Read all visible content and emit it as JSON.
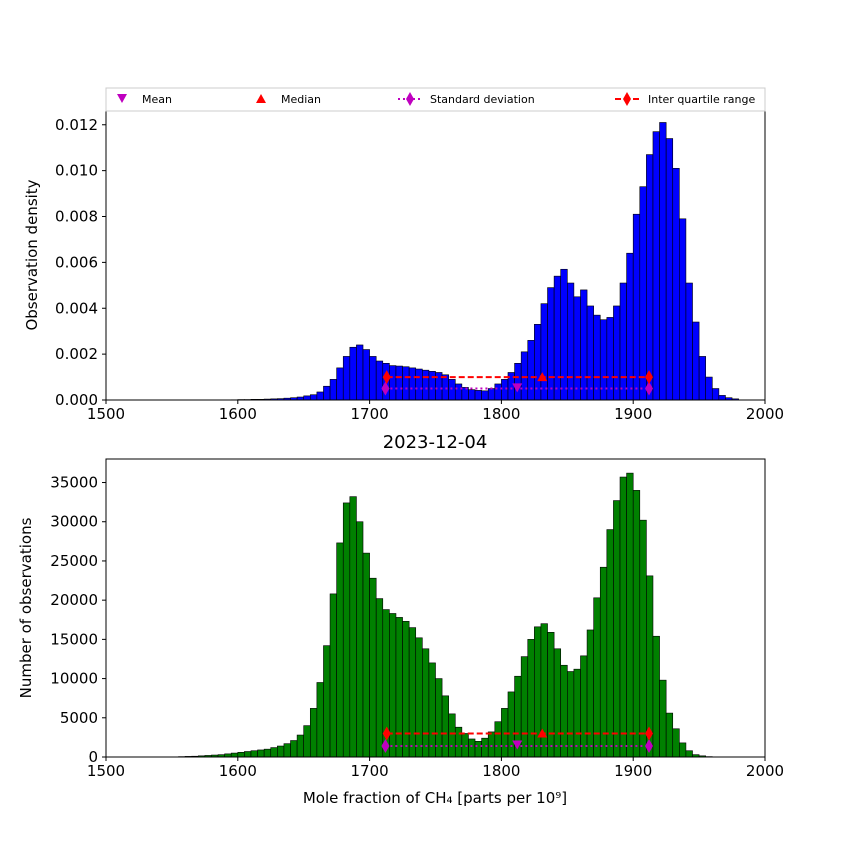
{
  "chart_data": [
    {
      "type": "bar",
      "ylabel": "Observation density",
      "xlim": [
        1500,
        2000
      ],
      "ylim": [
        0,
        0.0126
      ],
      "xticks": [
        "1500",
        "1600",
        "1700",
        "1800",
        "1900",
        "2000"
      ],
      "yticks": [
        "0.000",
        "0.002",
        "0.004",
        "0.006",
        "0.008",
        "0.010",
        "0.012"
      ],
      "bar_color": "#0000ff",
      "bins": {
        "start": 1500,
        "width": 5
      },
      "values": [
        0,
        0,
        0,
        0,
        0,
        0,
        0,
        0,
        0,
        0,
        0,
        0,
        0,
        0,
        0,
        0,
        0,
        0,
        0,
        1e-05,
        2e-05,
        2e-05,
        3e-05,
        3e-05,
        4e-05,
        5e-05,
        6e-05,
        8e-05,
        0.0001,
        0.00013,
        0.00018,
        0.00023,
        0.00035,
        0.0006,
        0.0009,
        0.0014,
        0.0019,
        0.0023,
        0.0024,
        0.0022,
        0.0019,
        0.0017,
        0.0016,
        0.0015,
        0.00148,
        0.00145,
        0.0014,
        0.00135,
        0.0013,
        0.00125,
        0.0012,
        0.0011,
        0.0009,
        0.0007,
        0.00055,
        0.00045,
        0.00042,
        0.0004,
        0.0005,
        0.0007,
        0.0009,
        0.0012,
        0.0016,
        0.0021,
        0.0026,
        0.0033,
        0.0042,
        0.0049,
        0.0054,
        0.0057,
        0.0051,
        0.0045,
        0.0048,
        0.0041,
        0.0037,
        0.0035,
        0.0036,
        0.0041,
        0.0051,
        0.0064,
        0.0081,
        0.0093,
        0.0107,
        0.0117,
        0.0121,
        0.0114,
        0.0101,
        0.0079,
        0.0051,
        0.0034,
        0.0019,
        0.001,
        0.0005,
        0.0002,
        0.0001,
        5e-05,
        0,
        0,
        0,
        0,
        0,
        0,
        0,
        0,
        0,
        0
      ],
      "annotations": {
        "mean": 1812,
        "median": 1831,
        "std_range": [
          1712,
          1912
        ],
        "iqr_range": [
          1713,
          1912
        ],
        "mean_y": 0.00055,
        "median_y": 0.001,
        "std_y": 0.0005,
        "iqr_y": 0.001
      }
    },
    {
      "type": "bar",
      "title": "2023-12-04",
      "xlabel": "Mole fraction of CH₄ [parts per 10⁹]",
      "ylabel": "Number of observations",
      "xlim": [
        1500,
        2000
      ],
      "ylim": [
        0,
        38000
      ],
      "xticks": [
        "1500",
        "1600",
        "1700",
        "1800",
        "1900",
        "2000"
      ],
      "yticks": [
        "0",
        "5000",
        "10000",
        "15000",
        "20000",
        "25000",
        "30000",
        "35000"
      ],
      "bar_color": "#008000",
      "bins": {
        "start": 1500,
        "width": 5
      },
      "values": [
        0,
        0,
        0,
        0,
        0,
        0,
        0,
        0,
        0,
        0,
        0,
        50,
        80,
        100,
        150,
        200,
        250,
        300,
        400,
        500,
        600,
        700,
        800,
        900,
        1000,
        1200,
        1400,
        1700,
        2100,
        2800,
        4000,
        6200,
        9500,
        14200,
        20800,
        27300,
        32400,
        33200,
        30000,
        26000,
        22800,
        20200,
        18800,
        18300,
        17800,
        17300,
        16500,
        15200,
        13800,
        12000,
        10000,
        7800,
        5500,
        3800,
        3000,
        2300,
        2000,
        2400,
        3200,
        4500,
        6200,
        8300,
        10300,
        12800,
        15000,
        16600,
        17000,
        15900,
        13800,
        11700,
        10900,
        11200,
        12900,
        16200,
        20300,
        24200,
        29000,
        32700,
        35700,
        36200,
        34000,
        30200,
        23100,
        15400,
        9800,
        5600,
        3600,
        1800,
        800,
        300,
        150,
        50,
        0,
        0,
        0,
        0
      ],
      "annotations": {
        "mean": 1812,
        "median": 1831,
        "std_range": [
          1712,
          1912
        ],
        "iqr_range": [
          1713,
          1912
        ],
        "mean_y": 1600,
        "median_y": 3000,
        "std_y": 1400,
        "iqr_y": 3000
      }
    }
  ],
  "legend": {
    "mean": "Mean",
    "median": "Median",
    "std": "Standard deviation",
    "iqr": "Inter quartile range",
    "placement": "above top panel",
    "colors": {
      "mean": "#bf00bf",
      "median": "#ff0000",
      "std": "#bf00bf",
      "iqr": "#ff0000"
    }
  }
}
